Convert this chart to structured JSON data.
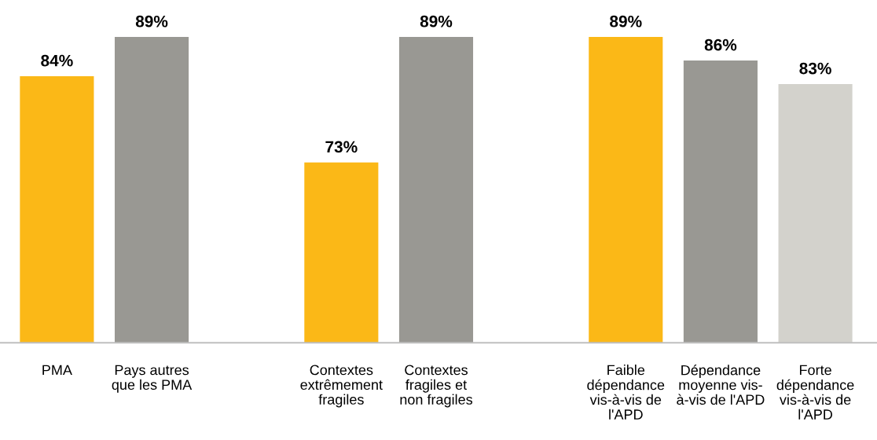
{
  "chart_data": {
    "type": "bar",
    "categories": [
      "PMA",
      "Pays autres\nque les PMA",
      null,
      "Contextes\nextrêmement\nfragiles",
      "Contextes\nfragiles et\nnon fragiles",
      null,
      "Faible\ndépendance\nvis-à-vis de\nl'APD",
      "Dépendance\nmoyenne vis-\nà-vis de l'APD",
      "Forte\ndépendance\nvis-à-vis de\nl'APD"
    ],
    "values": [
      84,
      89,
      null,
      73,
      89,
      null,
      89,
      86,
      83
    ],
    "value_labels": [
      "84%",
      "89%",
      null,
      "73%",
      "89%",
      null,
      "89%",
      "86%",
      "83%"
    ],
    "colors": [
      "#fbb817",
      "#999893",
      null,
      "#fbb817",
      "#999893",
      null,
      "#fbb817",
      "#999893",
      "#d3d2cc"
    ],
    "ylim": [
      50,
      89
    ],
    "tick_labels": "x",
    "grid": false,
    "legend": false
  }
}
